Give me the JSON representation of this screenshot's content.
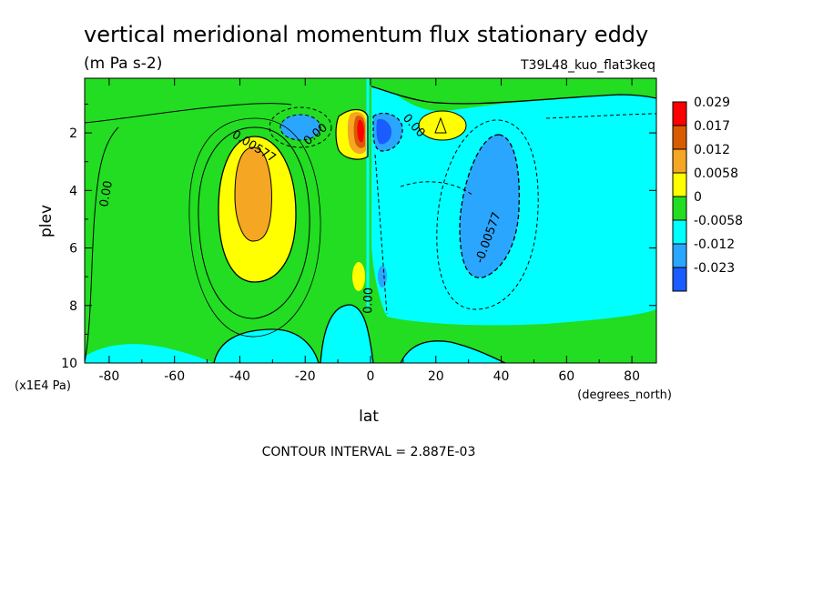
{
  "chart_data": {
    "type": "heatmap",
    "title": "vertical meridional momentum flux stationary eddy",
    "subtitle": "(m Pa s-2)",
    "run_label": "T39L48_kuo_flat3keq",
    "xlabel": "lat",
    "x_units": "(degrees_north)",
    "ylabel": "plev",
    "y_units": "(x1E4 Pa)",
    "xlim": [
      -87.5,
      87.5
    ],
    "ylim": [
      0.1,
      10
    ],
    "y_inverted": true,
    "x_ticks": [
      -80,
      -60,
      -40,
      -20,
      0,
      20,
      40,
      60,
      80
    ],
    "y_ticks": [
      2,
      4,
      6,
      8,
      10
    ],
    "footer": "CONTOUR INTERVAL = 2.887E-03",
    "colorbar": {
      "levels": [
        "0.029",
        "0.017",
        "0.012",
        "0.0058",
        "0",
        "-0.0058",
        "-0.012",
        "-0.023"
      ],
      "colors": [
        "#ff0000",
        "#d95b00",
        "#f5a623",
        "#ffff00",
        "#22dd22",
        "#00ffff",
        "#2aa6ff",
        "#1a5cff"
      ]
    },
    "contour_labels": [
      "0.00",
      "0.00577",
      "0.00",
      "0.00",
      "0.00",
      "-0.00577",
      "0.00"
    ],
    "features": [
      {
        "name": "SH positive maximum",
        "lat": -36,
        "plev": 3.7,
        "value": 0.014
      },
      {
        "name": "NH negative minimum",
        "lat": 34,
        "plev": 4.5,
        "value": -0.009
      },
      {
        "name": "equatorial positive core",
        "lat": -3,
        "plev": 2.0,
        "value": 0.029
      },
      {
        "name": "equatorial negative core",
        "lat": 5,
        "plev": 2.0,
        "value": -0.015
      },
      {
        "name": "NH upper positive",
        "lat": 23,
        "plev": 1.8,
        "value": 0.007
      },
      {
        "name": "SH upper negative",
        "lat": -20,
        "plev": 1.4,
        "value": -0.006
      }
    ]
  }
}
